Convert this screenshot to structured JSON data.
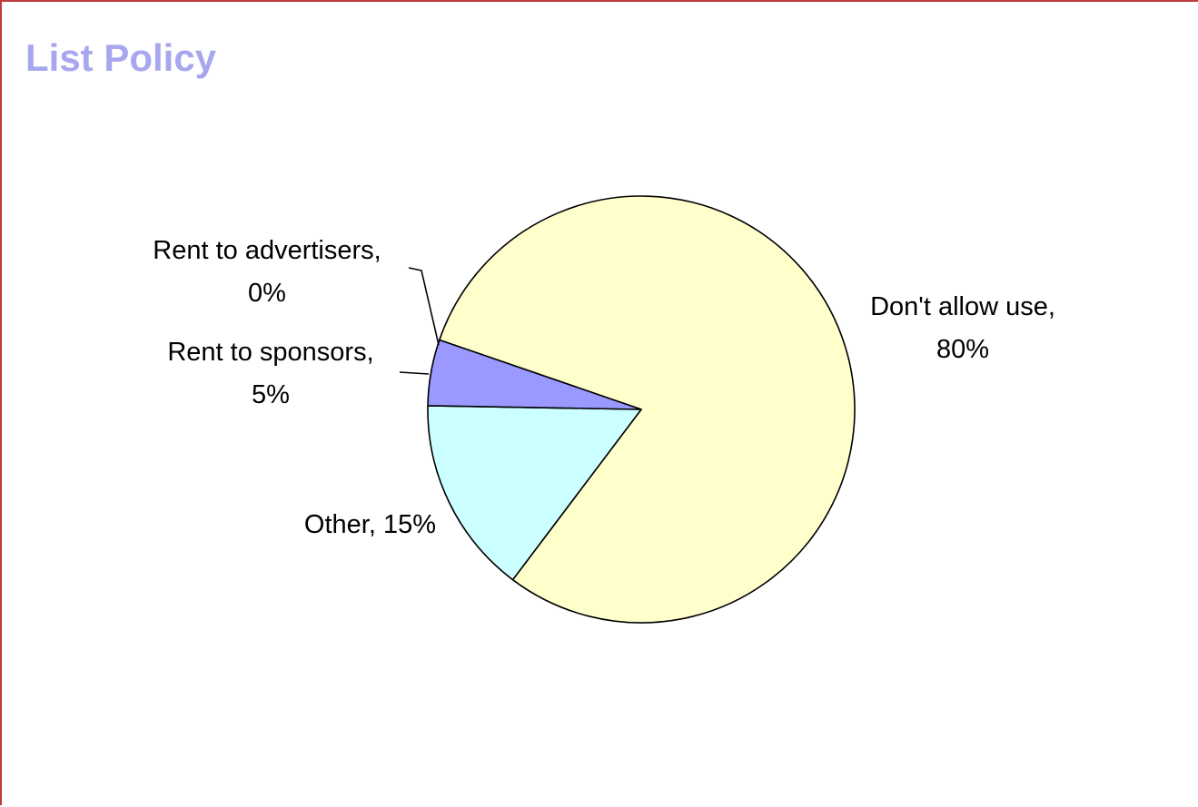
{
  "title": "List Policy",
  "chart_data": {
    "type": "pie",
    "title": "List Policy",
    "slices": [
      {
        "label": "Don't allow use",
        "value": 80,
        "display": "80%",
        "color": "#ffffcc"
      },
      {
        "label": "Other",
        "value": 15,
        "display": "15%",
        "color": "#ccffff"
      },
      {
        "label": "Rent to sponsors",
        "value": 5,
        "display": "5%",
        "color": "#9999ff"
      },
      {
        "label": "Rent to advertisers",
        "value": 0,
        "display": "0%",
        "color": "#ffffcc"
      }
    ],
    "legend": "none",
    "data_labels": "outside"
  }
}
